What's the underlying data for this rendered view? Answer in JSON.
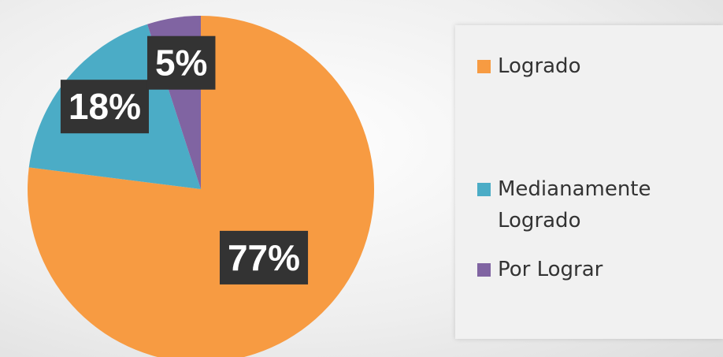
{
  "chart_data": {
    "type": "pie",
    "categories": [
      "Logrado",
      "Medianamente Logrado",
      "Por Lograr"
    ],
    "values": [
      77,
      18,
      5
    ],
    "value_labels": [
      "77%",
      "18%",
      "5%"
    ],
    "colors": [
      "#f79b42",
      "#4bacc6",
      "#8064a2"
    ],
    "legend": "right"
  }
}
